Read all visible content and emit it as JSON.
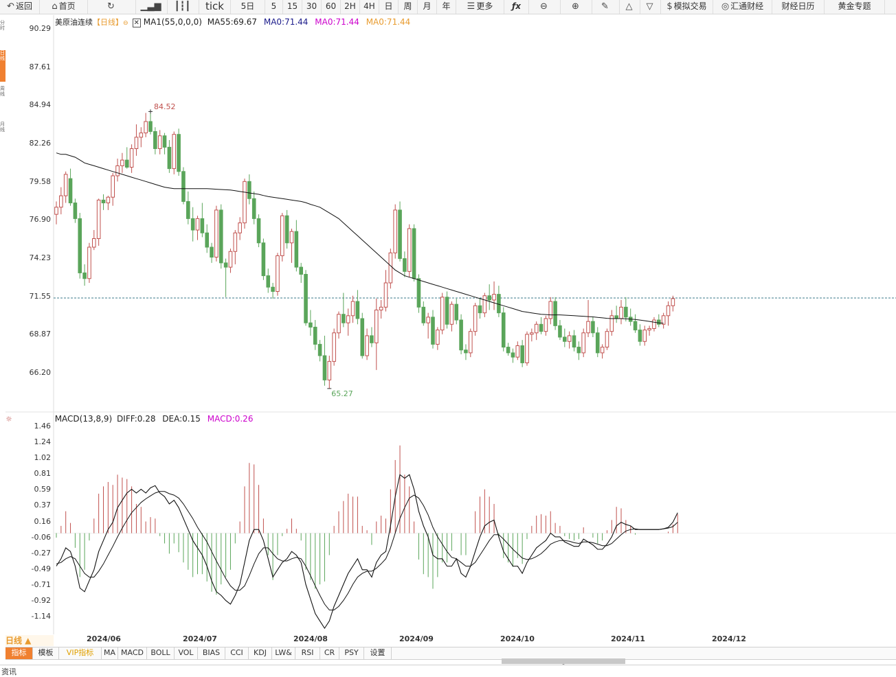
{
  "toolbar": {
    "back": "返回",
    "home": "首页",
    "tick": "tick",
    "periods": [
      "5日",
      "5",
      "15",
      "30",
      "60",
      "2H",
      "4H",
      "日",
      "周",
      "月",
      "年"
    ],
    "more": "更多",
    "sim_trade": "模拟交易",
    "huitong": "汇通财经",
    "calendar": "财经日历",
    "gold": "黄金专题"
  },
  "left_tabs": [
    "分时",
    "日线",
    "周线",
    "月线"
  ],
  "main_legend": {
    "name": "美原油连续",
    "period": "【日线】",
    "ma_params": "MA1(55,0,0,0)",
    "ma55": "MA55:69.67",
    "ma0_a": "MA0:71.44",
    "ma0_b": "MA0:71.44",
    "ma0_c": "MA0:71.44"
  },
  "price_axis": [
    "90.29",
    "87.61",
    "84.94",
    "82.26",
    "79.58",
    "76.90",
    "74.23",
    "71.55",
    "68.87",
    "66.20"
  ],
  "high_label": "84.52",
  "low_label": "65.27",
  "macd_legend": {
    "title": "MACD(13,8,9)",
    "diff": "DIFF:0.28",
    "dea": "DEA:0.15",
    "macd": "MACD:0.26"
  },
  "macd_axis": [
    "1.46",
    "1.24",
    "1.02",
    "0.81",
    "0.59",
    "0.37",
    "0.16",
    "-0.06",
    "-0.27",
    "-0.49",
    "-0.71",
    "-0.92",
    "-1.14"
  ],
  "dates": [
    "2024/06",
    "2024/07",
    "2024/08",
    "2024/09",
    "2024/10",
    "2024/11",
    "2024/12"
  ],
  "period_selector": "日线 ▲",
  "bottom_tabs": [
    "指标",
    "模板",
    "VIP指标",
    "MA",
    "MACD",
    "BOLL",
    "VOL",
    "BIAS",
    "CCI",
    "KDJ",
    "LW&",
    "RSI",
    "CR",
    "PSY",
    "设置"
  ],
  "footer": "资讯",
  "colors": {
    "up": "#c0504d",
    "down": "#5aa55a",
    "ma0": "#cc00cc",
    "ma0b": "#e89b2e",
    "accent": "#f08030",
    "ref_line": "#3a7a8a"
  },
  "chart_data": {
    "type": "candlestick",
    "title": "美原油连续【日线】",
    "ylim": [
      64.5,
      91.5
    ],
    "reference_line": 71.44,
    "candles": [
      [
        77.3,
        78.2,
        76.6,
        77.8
      ],
      [
        77.8,
        79.2,
        77.3,
        78.6
      ],
      [
        78.6,
        80.3,
        78.1,
        80.1
      ],
      [
        79.8,
        80.5,
        77.9,
        78.1
      ],
      [
        78.1,
        78.4,
        76.7,
        77.0
      ],
      [
        77.0,
        77.4,
        72.8,
        73.2
      ],
      [
        73.2,
        73.8,
        72.3,
        72.8
      ],
      [
        72.8,
        75.3,
        72.5,
        75.0
      ],
      [
        75.0,
        76.2,
        74.8,
        75.6
      ],
      [
        75.6,
        78.4,
        75.1,
        78.3
      ],
      [
        78.3,
        78.7,
        77.6,
        78.1
      ],
      [
        78.1,
        78.6,
        77.6,
        78.5
      ],
      [
        78.5,
        80.2,
        77.9,
        80.0
      ],
      [
        80.0,
        81.2,
        79.6,
        80.7
      ],
      [
        80.7,
        81.6,
        80.2,
        81.1
      ],
      [
        81.1,
        82.0,
        80.5,
        80.6
      ],
      [
        80.6,
        82.2,
        80.2,
        81.9
      ],
      [
        81.9,
        83.6,
        81.4,
        82.7
      ],
      [
        82.7,
        83.4,
        82.0,
        83.0
      ],
      [
        83.0,
        84.4,
        82.7,
        83.8
      ],
      [
        83.8,
        84.5,
        82.9,
        83.1
      ],
      [
        83.1,
        83.4,
        81.5,
        81.9
      ],
      [
        81.9,
        83.2,
        81.5,
        82.8
      ],
      [
        82.8,
        83.0,
        81.5,
        82.0
      ],
      [
        82.0,
        82.5,
        80.2,
        80.5
      ],
      [
        80.5,
        83.1,
        80.1,
        82.9
      ],
      [
        82.9,
        83.3,
        80.0,
        80.3
      ],
      [
        80.3,
        80.6,
        78.0,
        78.2
      ],
      [
        78.2,
        78.9,
        76.6,
        77.0
      ],
      [
        77.0,
        77.8,
        75.4,
        76.2
      ],
      [
        76.2,
        77.2,
        75.5,
        77.0
      ],
      [
        77.0,
        78.1,
        75.7,
        76.0
      ],
      [
        76.0,
        76.6,
        74.6,
        75.0
      ],
      [
        75.0,
        75.3,
        73.9,
        74.3
      ],
      [
        74.3,
        77.9,
        74.0,
        77.6
      ],
      [
        77.6,
        78.0,
        73.5,
        73.9
      ],
      [
        73.9,
        74.2,
        71.5,
        73.6
      ],
      [
        73.6,
        74.9,
        73.2,
        74.7
      ],
      [
        74.7,
        76.2,
        73.8,
        76.0
      ],
      [
        76.0,
        77.1,
        75.5,
        76.7
      ],
      [
        76.7,
        79.8,
        76.3,
        79.6
      ],
      [
        79.6,
        80.1,
        78.0,
        78.4
      ],
      [
        78.4,
        78.9,
        76.6,
        77.0
      ],
      [
        77.0,
        77.3,
        75.0,
        75.3
      ],
      [
        75.3,
        75.6,
        72.7,
        73.0
      ],
      [
        73.0,
        73.5,
        71.8,
        72.2
      ],
      [
        72.2,
        72.5,
        71.4,
        71.9
      ],
      [
        71.9,
        74.6,
        71.6,
        74.4
      ],
      [
        74.4,
        77.4,
        74.0,
        77.2
      ],
      [
        77.2,
        77.6,
        74.9,
        75.3
      ],
      [
        75.3,
        76.3,
        73.9,
        76.1
      ],
      [
        76.1,
        76.9,
        73.3,
        73.6
      ],
      [
        73.6,
        73.9,
        72.5,
        73.1
      ],
      [
        73.1,
        73.4,
        69.5,
        69.7
      ],
      [
        69.7,
        70.6,
        68.8,
        69.4
      ],
      [
        69.4,
        69.9,
        67.8,
        68.2
      ],
      [
        68.2,
        68.5,
        67.0,
        67.4
      ],
      [
        67.4,
        68.8,
        65.3,
        65.7
      ],
      [
        65.7,
        67.4,
        65.1,
        67.0
      ],
      [
        67.0,
        69.3,
        66.7,
        69.0
      ],
      [
        69.0,
        70.5,
        68.6,
        70.3
      ],
      [
        70.3,
        71.8,
        69.4,
        69.7
      ],
      [
        69.7,
        70.7,
        68.8,
        70.2
      ],
      [
        70.2,
        71.6,
        69.7,
        71.2
      ],
      [
        71.2,
        72.0,
        69.6,
        70.0
      ],
      [
        70.0,
        70.4,
        67.2,
        67.4
      ],
      [
        67.4,
        69.3,
        67.1,
        68.8
      ],
      [
        68.8,
        69.4,
        68.0,
        68.3
      ],
      [
        68.3,
        71.4,
        66.4,
        70.6
      ],
      [
        70.6,
        71.3,
        70.0,
        70.8
      ],
      [
        70.8,
        73.4,
        70.5,
        72.5
      ],
      [
        72.5,
        74.9,
        72.1,
        74.6
      ],
      [
        74.6,
        78.0,
        74.2,
        77.6
      ],
      [
        77.6,
        78.2,
        74.0,
        74.2
      ],
      [
        74.2,
        74.7,
        72.9,
        73.3
      ],
      [
        73.3,
        76.6,
        72.9,
        76.3
      ],
      [
        76.3,
        76.6,
        72.6,
        72.8
      ],
      [
        72.8,
        73.1,
        70.4,
        70.8
      ],
      [
        70.8,
        71.2,
        69.5,
        69.7
      ],
      [
        69.7,
        70.4,
        68.6,
        70.1
      ],
      [
        70.1,
        70.6,
        67.9,
        68.2
      ],
      [
        68.2,
        69.4,
        67.8,
        69.2
      ],
      [
        69.2,
        71.8,
        68.9,
        71.5
      ],
      [
        71.5,
        71.9,
        69.3,
        69.6
      ],
      [
        69.6,
        71.2,
        69.1,
        71.0
      ],
      [
        71.0,
        71.4,
        69.6,
        69.9
      ],
      [
        69.9,
        70.3,
        67.5,
        67.8
      ],
      [
        67.8,
        68.2,
        67.1,
        67.6
      ],
      [
        67.6,
        69.3,
        67.3,
        69.1
      ],
      [
        69.1,
        71.1,
        68.8,
        70.9
      ],
      [
        70.9,
        71.4,
        70.0,
        70.4
      ],
      [
        70.4,
        71.8,
        70.1,
        71.6
      ],
      [
        71.6,
        72.4,
        70.6,
        71.3
      ],
      [
        71.3,
        72.6,
        70.6,
        71.7
      ],
      [
        71.7,
        72.3,
        70.1,
        70.4
      ],
      [
        70.4,
        70.8,
        67.7,
        68.0
      ],
      [
        68.0,
        68.3,
        67.4,
        67.6
      ],
      [
        67.6,
        67.9,
        66.9,
        67.3
      ],
      [
        67.3,
        68.4,
        67.1,
        68.1
      ],
      [
        68.1,
        68.5,
        66.6,
        66.9
      ],
      [
        66.9,
        69.1,
        66.7,
        68.9
      ],
      [
        68.9,
        69.3,
        68.4,
        69.0
      ],
      [
        69.0,
        69.8,
        68.5,
        69.6
      ],
      [
        69.6,
        70.1,
        68.9,
        69.1
      ],
      [
        69.1,
        70.2,
        68.8,
        70.0
      ],
      [
        70.0,
        71.5,
        69.6,
        71.2
      ],
      [
        71.2,
        71.5,
        69.2,
        69.5
      ],
      [
        69.5,
        69.9,
        68.5,
        68.7
      ],
      [
        68.7,
        69.3,
        68.0,
        68.4
      ],
      [
        68.4,
        69.1,
        67.9,
        68.8
      ],
      [
        68.8,
        69.2,
        67.7,
        68.0
      ],
      [
        68.0,
        68.4,
        67.1,
        67.6
      ],
      [
        67.6,
        69.3,
        67.3,
        69.0
      ],
      [
        69.0,
        71.3,
        68.7,
        69.8
      ],
      [
        69.8,
        70.1,
        68.7,
        69.0
      ],
      [
        69.0,
        69.4,
        67.3,
        67.6
      ],
      [
        67.6,
        68.2,
        67.2,
        68.0
      ],
      [
        68.0,
        69.3,
        67.8,
        69.1
      ],
      [
        69.1,
        70.6,
        68.8,
        70.2
      ],
      [
        70.2,
        70.9,
        69.7,
        70.0
      ],
      [
        70.0,
        71.3,
        69.6,
        70.8
      ],
      [
        70.8,
        71.5,
        69.8,
        70.1
      ],
      [
        70.1,
        70.7,
        69.5,
        69.8
      ],
      [
        69.8,
        70.3,
        69.0,
        69.2
      ],
      [
        69.2,
        69.6,
        68.1,
        68.4
      ],
      [
        68.4,
        69.5,
        68.1,
        69.2
      ],
      [
        69.2,
        69.5,
        68.8,
        69.3
      ],
      [
        69.3,
        70.1,
        69.1,
        69.9
      ],
      [
        69.9,
        70.3,
        69.4,
        69.6
      ],
      [
        69.6,
        70.4,
        69.3,
        70.2
      ],
      [
        70.2,
        71.2,
        69.5,
        70.9
      ],
      [
        70.9,
        71.6,
        70.5,
        71.4
      ]
    ],
    "ma55": [
      81.6,
      81.5,
      81.5,
      81.4,
      81.3,
      81.1,
      80.9,
      80.8,
      80.7,
      80.6,
      80.5,
      80.4,
      80.3,
      80.2,
      80.1,
      80.0,
      79.9,
      79.8,
      79.7,
      79.6,
      79.5,
      79.4,
      79.3,
      79.2,
      79.15,
      79.1,
      79.1,
      79.1,
      79.1,
      79.1,
      79.1,
      79.1,
      79.1,
      79.08,
      79.06,
      79.04,
      79.02,
      79.0,
      78.95,
      78.9,
      78.85,
      78.8,
      78.75,
      78.7,
      78.62,
      78.55,
      78.5,
      78.45,
      78.4,
      78.35,
      78.3,
      78.25,
      78.2,
      78.12,
      78.0,
      77.9,
      77.8,
      77.6,
      77.4,
      77.2,
      77.0,
      76.7,
      76.4,
      76.1,
      75.8,
      75.5,
      75.2,
      74.9,
      74.6,
      74.3,
      74.0,
      73.7,
      73.4,
      73.2,
      73.0,
      72.9,
      72.8,
      72.7,
      72.6,
      72.5,
      72.4,
      72.3,
      72.2,
      72.1,
      72.0,
      71.9,
      71.8,
      71.7,
      71.6,
      71.5,
      71.4,
      71.3,
      71.2,
      71.1,
      71.0,
      70.9,
      70.8,
      70.7,
      70.6,
      70.5,
      70.45,
      70.4,
      70.35,
      70.3,
      70.28,
      70.26,
      70.26,
      70.26,
      70.24,
      70.22,
      70.2,
      70.18,
      70.16,
      70.14,
      70.12,
      70.08,
      70.05,
      70.02,
      70.0,
      70.0,
      70.0,
      69.98,
      69.96,
      69.94,
      69.9,
      69.85,
      69.8,
      69.75,
      69.7,
      69.67
    ],
    "macd": {
      "ylim": [
        -1.3,
        1.55
      ],
      "diff": [
        -0.45,
        -0.35,
        -0.2,
        -0.25,
        -0.45,
        -0.75,
        -0.8,
        -0.65,
        -0.5,
        -0.25,
        -0.1,
        0.05,
        0.15,
        0.35,
        0.45,
        0.55,
        0.6,
        0.55,
        0.6,
        0.55,
        0.62,
        0.65,
        0.55,
        0.5,
        0.4,
        0.45,
        0.35,
        0.2,
        0.05,
        -0.1,
        -0.2,
        -0.3,
        -0.45,
        -0.65,
        -0.8,
        -0.85,
        -0.92,
        -0.97,
        -0.85,
        -0.7,
        -0.4,
        -0.1,
        0.05,
        0.05,
        -0.1,
        -0.35,
        -0.6,
        -0.5,
        -0.4,
        -0.35,
        -0.25,
        -0.3,
        -0.4,
        -0.7,
        -0.9,
        -1.1,
        -1.2,
        -1.3,
        -1.2,
        -1.0,
        -0.85,
        -0.7,
        -0.55,
        -0.45,
        -0.35,
        -0.5,
        -0.5,
        -0.6,
        -0.4,
        -0.3,
        -0.25,
        0.1,
        0.5,
        0.8,
        0.75,
        0.8,
        0.6,
        0.3,
        0.1,
        -0.05,
        -0.3,
        -0.35,
        -0.35,
        -0.45,
        -0.45,
        -0.35,
        -0.55,
        -0.6,
        -0.45,
        -0.25,
        -0.05,
        0.1,
        0.15,
        0.18,
        -0.05,
        -0.25,
        -0.35,
        -0.45,
        -0.45,
        -0.55,
        -0.4,
        -0.3,
        -0.2,
        -0.15,
        -0.1,
        0.0,
        -0.05,
        -0.05,
        -0.12,
        -0.15,
        -0.18,
        -0.18,
        -0.08,
        -0.12,
        -0.16,
        -0.22,
        -0.22,
        -0.15,
        -0.05,
        0.1,
        0.15,
        0.12,
        0.1,
        0.05,
        0.05,
        0.05,
        0.05,
        0.05,
        0.05,
        0.06,
        0.08,
        0.15,
        0.28
      ],
      "dea": [
        -0.42,
        -0.4,
        -0.35,
        -0.32,
        -0.35,
        -0.45,
        -0.55,
        -0.6,
        -0.6,
        -0.52,
        -0.42,
        -0.3,
        -0.18,
        -0.05,
        0.07,
        0.18,
        0.28,
        0.35,
        0.42,
        0.47,
        0.51,
        0.55,
        0.57,
        0.57,
        0.54,
        0.52,
        0.48,
        0.4,
        0.3,
        0.2,
        0.08,
        -0.02,
        -0.12,
        -0.25,
        -0.38,
        -0.5,
        -0.62,
        -0.72,
        -0.78,
        -0.78,
        -0.72,
        -0.58,
        -0.42,
        -0.28,
        -0.2,
        -0.2,
        -0.28,
        -0.35,
        -0.38,
        -0.38,
        -0.35,
        -0.33,
        -0.35,
        -0.45,
        -0.58,
        -0.72,
        -0.85,
        -0.97,
        -1.05,
        -1.05,
        -1.0,
        -0.92,
        -0.82,
        -0.7,
        -0.6,
        -0.55,
        -0.52,
        -0.52,
        -0.48,
        -0.42,
        -0.35,
        -0.2,
        0.0,
        0.2,
        0.35,
        0.48,
        0.52,
        0.48,
        0.38,
        0.25,
        0.08,
        -0.05,
        -0.15,
        -0.25,
        -0.33,
        -0.35,
        -0.4,
        -0.45,
        -0.45,
        -0.4,
        -0.3,
        -0.2,
        -0.1,
        -0.02,
        -0.02,
        -0.08,
        -0.15,
        -0.22,
        -0.28,
        -0.34,
        -0.36,
        -0.35,
        -0.32,
        -0.28,
        -0.22,
        -0.15,
        -0.12,
        -0.1,
        -0.1,
        -0.11,
        -0.13,
        -0.14,
        -0.12,
        -0.12,
        -0.13,
        -0.15,
        -0.17,
        -0.17,
        -0.14,
        -0.08,
        -0.02,
        0.03,
        0.05,
        0.06,
        0.05,
        0.05,
        0.05,
        0.05,
        0.05,
        0.06,
        0.07,
        0.09,
        0.15
      ]
    }
  }
}
